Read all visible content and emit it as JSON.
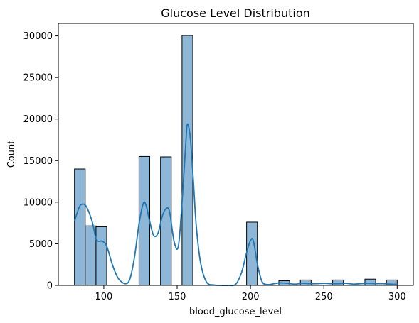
{
  "chart_data": {
    "type": "bar",
    "title": "Glucose Level Distribution",
    "xlabel": "blood_glucose_level",
    "ylabel": "Count",
    "xlim": [
      69.0,
      311.0
    ],
    "ylim": [
      0,
      31500
    ],
    "xticks": [
      100,
      150,
      200,
      250,
      300
    ],
    "yticks": [
      0,
      5000,
      10000,
      15000,
      20000,
      25000,
      30000
    ],
    "grid": false,
    "colors": {
      "bar_fill": "#8eb6d6",
      "bar_edge": "#000000",
      "kde_line": "#1f77b4"
    },
    "bins": [
      {
        "x0": 80.0,
        "x1": 87.33,
        "count": 14000
      },
      {
        "x0": 87.33,
        "x1": 94.67,
        "count": 7150
      },
      {
        "x0": 94.67,
        "x1": 102.0,
        "count": 7050
      },
      {
        "x0": 124.0,
        "x1": 131.33,
        "count": 15500
      },
      {
        "x0": 138.67,
        "x1": 146.0,
        "count": 15450
      },
      {
        "x0": 153.33,
        "x1": 160.67,
        "count": 30050
      },
      {
        "x0": 197.33,
        "x1": 204.67,
        "count": 7600
      },
      {
        "x0": 219.33,
        "x1": 226.67,
        "count": 550
      },
      {
        "x0": 234.0,
        "x1": 241.33,
        "count": 650
      },
      {
        "x0": 256.0,
        "x1": 263.33,
        "count": 650
      },
      {
        "x0": 278.0,
        "x1": 285.33,
        "count": 750
      },
      {
        "x0": 292.67,
        "x1": 300.0,
        "count": 650
      }
    ],
    "kde": {
      "x": [
        80,
        83,
        85,
        88,
        92,
        95,
        99,
        102,
        106,
        110,
        115,
        118,
        121,
        124,
        127,
        129,
        131,
        134,
        137,
        140,
        143,
        145,
        148,
        151,
        154,
        156,
        157,
        159,
        161,
        163,
        166,
        170,
        175,
        180,
        185,
        190,
        194,
        197,
        200,
        202,
        205,
        208,
        212,
        216,
        220,
        225,
        230,
        236,
        240,
        245,
        250,
        255,
        260,
        265,
        270,
        275,
        280,
        285,
        290,
        295,
        300
      ],
      "y": [
        7700,
        9300,
        9750,
        9500,
        7700,
        5500,
        5300,
        4700,
        2400,
        800,
        200,
        900,
        3500,
        7400,
        9900,
        9500,
        7900,
        6000,
        6300,
        8400,
        9300,
        8700,
        5200,
        4900,
        11800,
        17400,
        19400,
        17700,
        12700,
        7200,
        2700,
        400,
        50,
        0,
        0,
        150,
        1600,
        3700,
        5400,
        5300,
        2300,
        400,
        100,
        200,
        300,
        250,
        150,
        250,
        200,
        200,
        250,
        200,
        200,
        250,
        150,
        200,
        250,
        200,
        200,
        150,
        100
      ]
    }
  }
}
